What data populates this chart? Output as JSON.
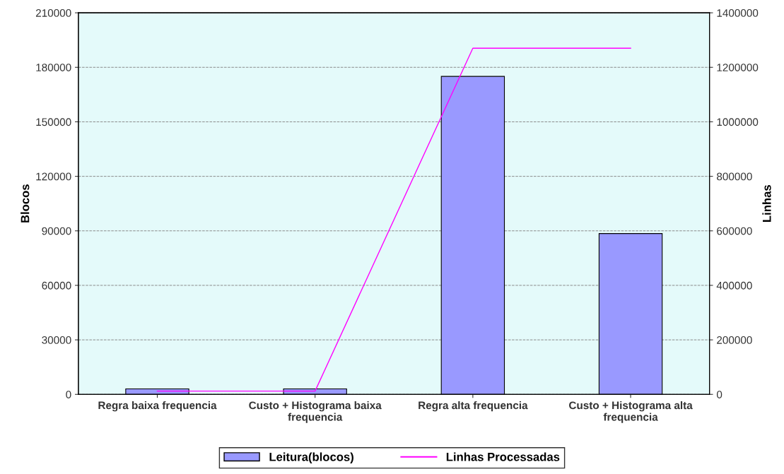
{
  "chart_data": {
    "type": "bar",
    "ylabel": "Blocos",
    "y2label": "Linhas",
    "categories": [
      "Regra baixa frequencia",
      "Custo + Histograma baixa frequencia",
      "Regra alta frequencia",
      "Custo + Histograma alta frequencia"
    ],
    "series": [
      {
        "name": "Leitura(blocos)",
        "color": "#9999ff",
        "values": [
          3000,
          3000,
          175000,
          88500
        ]
      },
      {
        "name": "Linhas Processadas",
        "type": "line",
        "axis": "y2",
        "color": "#ff00ff",
        "values": [
          12000,
          12000,
          1270000,
          1270000
        ]
      }
    ],
    "ylim": [
      0,
      210000
    ],
    "yticks": [
      0,
      30000,
      60000,
      90000,
      120000,
      150000,
      180000,
      210000
    ],
    "y2lim": [
      0,
      1400000
    ],
    "y2ticks": [
      0,
      200000,
      400000,
      600000,
      800000,
      1000000,
      1200000,
      1400000
    ],
    "grid": "y",
    "legend": "bottom",
    "marker": "none",
    "line_style": "solid"
  }
}
